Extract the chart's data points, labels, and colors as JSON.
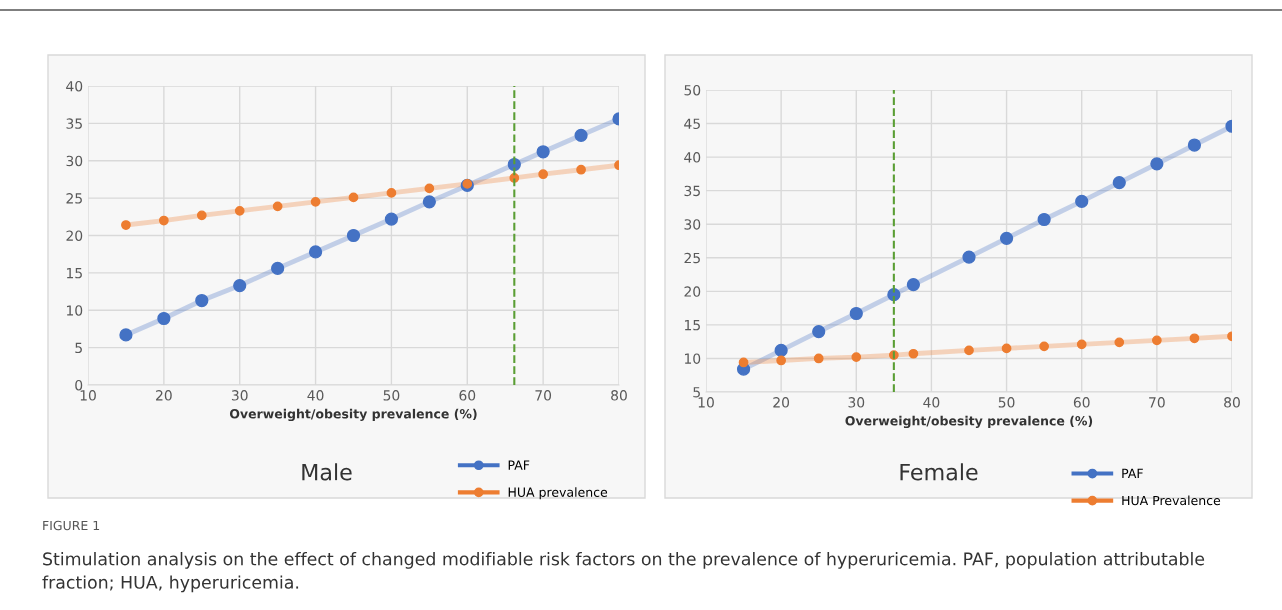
{
  "chart_data": [
    {
      "type": "line",
      "xlabel": "Overweight/obesity prevalence (%)",
      "annotations": [
        "Male",
        "FIGURE 1",
        "Stimulation analysis on the effect of changed modifiable risk factors on the prevalence of hyperuricemia. PAF, population attributable fraction; HUA, hyperuricemia."
      ],
      "x": [
        15,
        20,
        25,
        30,
        35,
        40,
        45,
        50,
        55,
        60,
        66.2,
        70,
        75,
        80
      ],
      "series": [
        {
          "name": "PAF",
          "color": "#4472c4",
          "values": [
            6.7,
            8.9,
            11.3,
            13.3,
            15.6,
            17.8,
            20.0,
            22.2,
            24.5,
            26.7,
            29.5,
            31.2,
            33.4,
            35.6
          ]
        },
        {
          "name": "HUA prevalence",
          "color": "#ed7d31",
          "values": [
            21.4,
            22.0,
            22.7,
            23.3,
            23.9,
            24.5,
            25.1,
            25.7,
            26.3,
            26.9,
            27.7,
            28.2,
            28.8,
            29.4
          ]
        }
      ],
      "xlim": [
        10,
        80
      ],
      "xticks": [
        10,
        20,
        30,
        40,
        50,
        60,
        70,
        80
      ],
      "ylim": [
        0,
        40
      ],
      "yticks": [
        0,
        5,
        10,
        15,
        20,
        25,
        30,
        35,
        40
      ],
      "ref_lines": [
        {
          "axis": "x",
          "value": 66.2,
          "color": "#5a9e34",
          "line_style": "dashed"
        }
      ],
      "grid": true,
      "legend": "bottom right",
      "marker": "circle"
    },
    {
      "type": "line",
      "xlabel": "Overweight/obesity prevalence (%)",
      "annotations": [
        "Female"
      ],
      "x": [
        15,
        20,
        25,
        30,
        35,
        37.6,
        45,
        50,
        55,
        60,
        65,
        70,
        75,
        80
      ],
      "series": [
        {
          "name": "PAF",
          "color": "#4472c4",
          "values": [
            8.4,
            11.2,
            14.0,
            16.7,
            19.5,
            21.0,
            25.1,
            27.9,
            30.7,
            33.4,
            36.2,
            39.0,
            41.8,
            44.6
          ]
        },
        {
          "name": "HUA Prevalence",
          "color": "#ed7d31",
          "values": [
            9.4,
            9.7,
            10.0,
            10.2,
            10.5,
            10.7,
            11.2,
            11.5,
            11.8,
            12.1,
            12.4,
            12.7,
            13.0,
            13.3
          ]
        }
      ],
      "xlim": [
        10,
        80
      ],
      "xticks": [
        10,
        20,
        30,
        40,
        50,
        60,
        70,
        80
      ],
      "ylim": [
        5,
        50
      ],
      "yticks": [
        5,
        10,
        15,
        20,
        25,
        30,
        35,
        40,
        45,
        50
      ],
      "ref_lines": [
        {
          "axis": "x",
          "value": 35,
          "color": "#5a9e34",
          "line_style": "dashed"
        }
      ],
      "grid": true,
      "legend": "bottom right",
      "marker": "circle"
    }
  ]
}
